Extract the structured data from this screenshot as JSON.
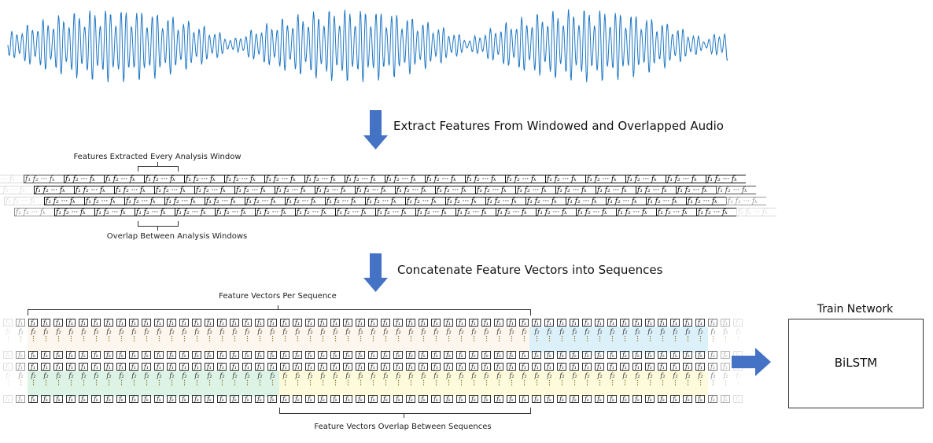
{
  "waveform": {
    "color": "#1f77c4"
  },
  "step1": {
    "label": "Extract Features From Windowed and Overlapped Audio"
  },
  "step2": {
    "label": "Concatenate Feature Vectors into Sequences"
  },
  "features": {
    "top_label": "Features Extracted Every Analysis Window",
    "bottom_label": "Overlap Between Analysis Windows",
    "symbols": {
      "first": "f₁",
      "second": "f₂",
      "ellipsis": "···",
      "last": "fₖ"
    }
  },
  "sequences": {
    "top_label": "Feature Vectors Per Sequence",
    "bottom_label": "Feature Vectors Overlap Between Sequences",
    "colors": {
      "cream": "#fdf6ee",
      "blue": "#dcf0fa",
      "green": "#dcf3e6",
      "yellow": "#fdfbdc"
    }
  },
  "network": {
    "title": "Train Network",
    "name": "BiLSTM"
  },
  "arrow_color": "#4472c4"
}
